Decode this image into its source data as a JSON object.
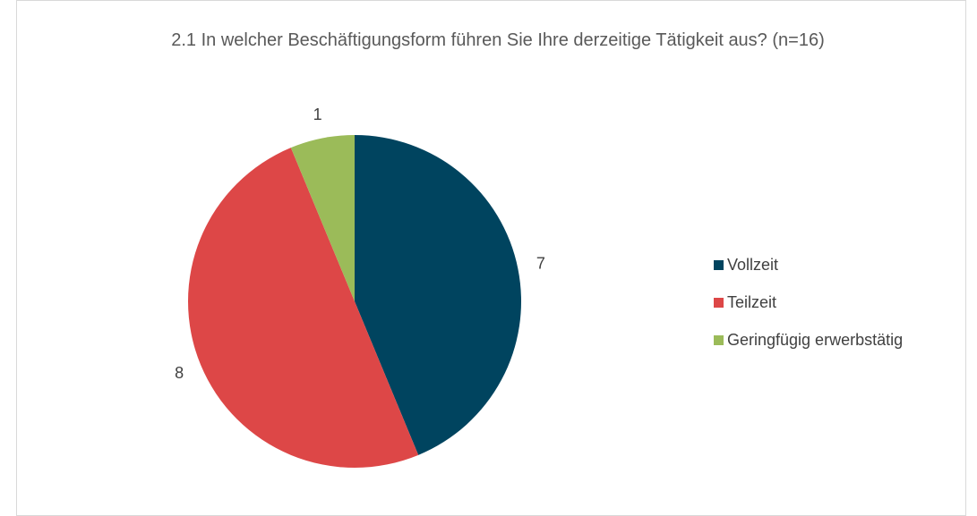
{
  "chart_data": {
    "type": "pie",
    "title": "2.1 In welcher Beschäftigungsform führen Sie Ihre derzeitige Tätigkeit aus? (n=16)",
    "categories": [
      "Vollzeit",
      "Teilzeit",
      "Geringfügig erwerbstätig"
    ],
    "values": [
      7,
      8,
      1
    ],
    "colors": [
      "#00445f",
      "#dd4747",
      "#9bbb59"
    ],
    "legend": "right"
  }
}
